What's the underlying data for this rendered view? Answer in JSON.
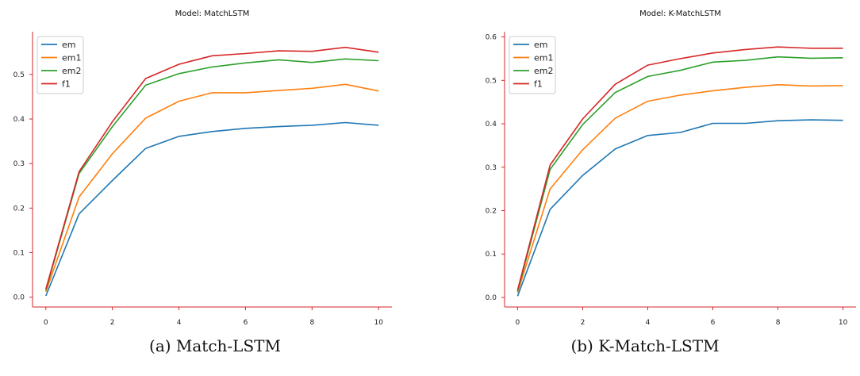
{
  "chart_data": [
    {
      "type": "line",
      "title": "Model: MatchLSTM",
      "caption": "(a) Match-LSTM",
      "xlabel": "",
      "ylabel": "",
      "x": [
        0,
        1,
        2,
        3,
        4,
        5,
        6,
        7,
        8,
        9,
        10
      ],
      "xlim": [
        -0.4,
        10.4
      ],
      "ylim": [
        -0.022,
        0.596
      ],
      "xticks": [
        "0",
        "2",
        "4",
        "6",
        "8",
        "10"
      ],
      "yticks": [
        "0.0",
        "0.1",
        "0.2",
        "0.3",
        "0.4",
        "0.5"
      ],
      "legend": "top-left",
      "axis_color": "#d62728",
      "series": [
        {
          "name": "em",
          "color": "#1f77b4",
          "values": [
            0.003,
            0.187,
            0.262,
            0.334,
            0.361,
            0.372,
            0.379,
            0.383,
            0.386,
            0.392,
            0.386
          ]
        },
        {
          "name": "em1",
          "color": "#ff7f0e",
          "values": [
            0.012,
            0.225,
            0.322,
            0.402,
            0.44,
            0.459,
            0.459,
            0.464,
            0.469,
            0.478,
            0.463
          ]
        },
        {
          "name": "em2",
          "color": "#2ca02c",
          "values": [
            0.015,
            0.278,
            0.383,
            0.476,
            0.502,
            0.517,
            0.526,
            0.533,
            0.527,
            0.535,
            0.531
          ]
        },
        {
          "name": "f1",
          "color": "#d62728",
          "values": [
            0.018,
            0.282,
            0.394,
            0.491,
            0.523,
            0.542,
            0.547,
            0.553,
            0.552,
            0.561,
            0.55
          ]
        }
      ]
    },
    {
      "type": "line",
      "title": "Model: K-MatchLSTM",
      "caption": "(b) K-Match-LSTM",
      "xlabel": "",
      "ylabel": "",
      "x": [
        0,
        1,
        2,
        3,
        4,
        5,
        6,
        7,
        8,
        9,
        10
      ],
      "xlim": [
        -0.4,
        10.4
      ],
      "ylim": [
        -0.022,
        0.612
      ],
      "xticks": [
        "0",
        "2",
        "4",
        "6",
        "8",
        "10"
      ],
      "yticks": [
        "0.0",
        "0.1",
        "0.2",
        "0.3",
        "0.4",
        "0.5",
        "0.6"
      ],
      "legend": "top-left",
      "axis_color": "#d62728",
      "series": [
        {
          "name": "em",
          "color": "#1f77b4",
          "values": [
            0.003,
            0.203,
            0.281,
            0.342,
            0.373,
            0.38,
            0.401,
            0.401,
            0.407,
            0.409,
            0.408
          ]
        },
        {
          "name": "em1",
          "color": "#ff7f0e",
          "values": [
            0.011,
            0.25,
            0.34,
            0.413,
            0.452,
            0.466,
            0.476,
            0.484,
            0.49,
            0.487,
            0.488
          ]
        },
        {
          "name": "em2",
          "color": "#2ca02c",
          "values": [
            0.014,
            0.295,
            0.398,
            0.472,
            0.509,
            0.523,
            0.542,
            0.546,
            0.554,
            0.551,
            0.552
          ]
        },
        {
          "name": "f1",
          "color": "#d62728",
          "values": [
            0.017,
            0.305,
            0.411,
            0.491,
            0.535,
            0.55,
            0.563,
            0.571,
            0.577,
            0.574,
            0.574
          ]
        }
      ]
    }
  ]
}
